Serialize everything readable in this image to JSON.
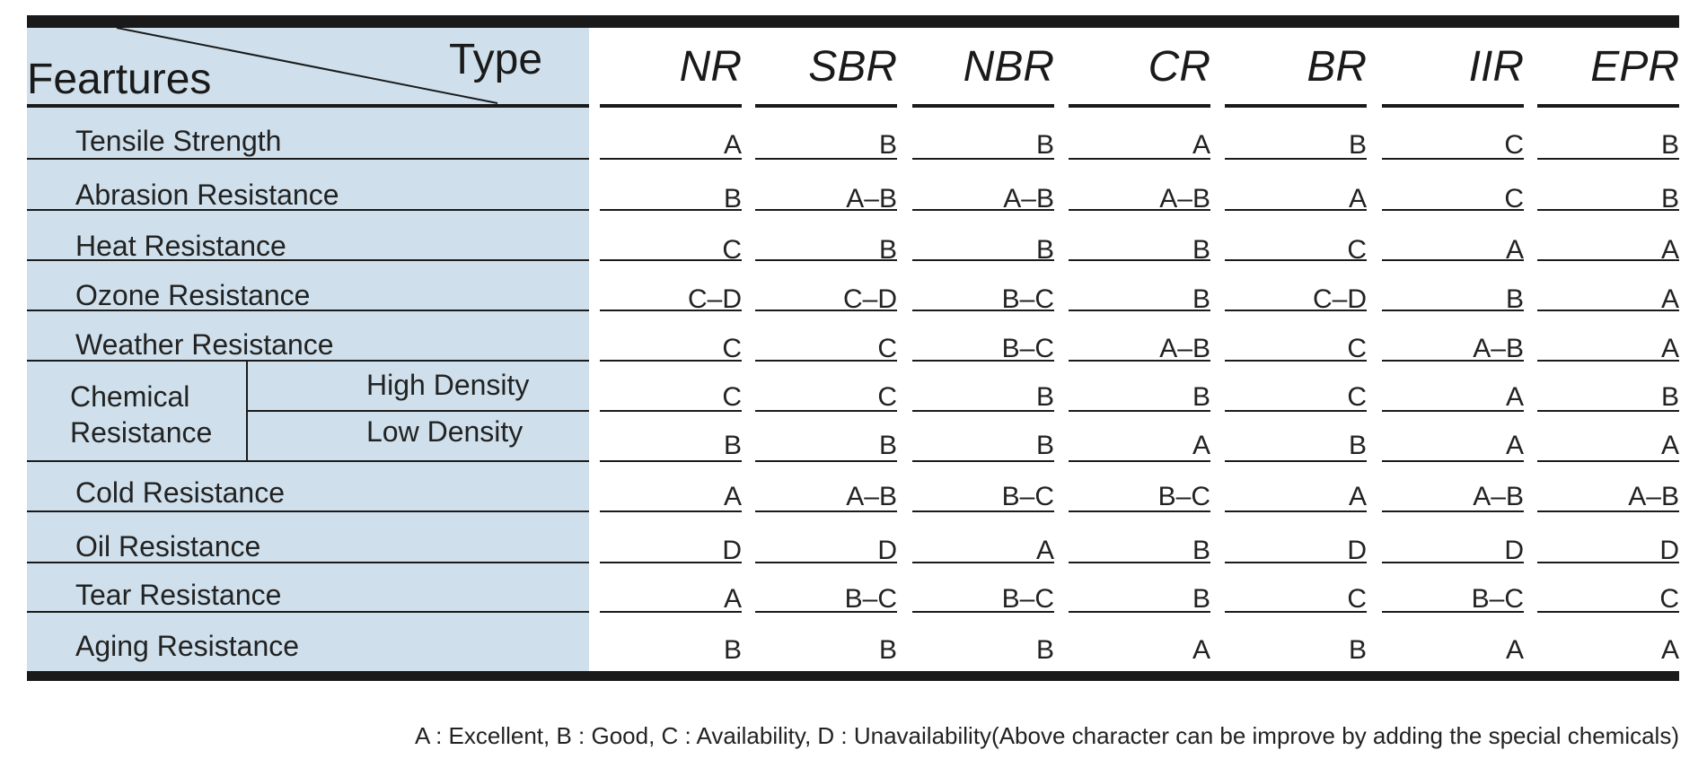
{
  "corner": {
    "type_label": "Type",
    "features_label": "Feartures"
  },
  "columns": [
    "NR",
    "SBR",
    "NBR",
    "CR",
    "BR",
    "IIR",
    "EPR"
  ],
  "chemical_group": {
    "label_line1": "Chemical",
    "label_line2": "Resistance"
  },
  "rows": [
    {
      "feature": "Tensile Strength",
      "values": [
        "A",
        "B",
        "B",
        "A",
        "B",
        "C",
        "B"
      ]
    },
    {
      "feature": "Abrasion Resistance",
      "values": [
        "B",
        "A–B",
        "A–B",
        "A–B",
        "A",
        "C",
        "B"
      ]
    },
    {
      "feature": "Heat Resistance",
      "values": [
        "C",
        "B",
        "B",
        "B",
        "C",
        "A",
        "A"
      ]
    },
    {
      "feature": "Ozone Resistance",
      "values": [
        "C–D",
        "C–D",
        "B–C",
        "B",
        "C–D",
        "B",
        "A"
      ]
    },
    {
      "feature": "Weather Resistance",
      "values": [
        "C",
        "C",
        "B–C",
        "A–B",
        "C",
        "A–B",
        "A"
      ]
    },
    {
      "feature": "High Density",
      "values": [
        "C",
        "C",
        "B",
        "B",
        "C",
        "A",
        "B"
      ]
    },
    {
      "feature": "Low Density",
      "values": [
        "B",
        "B",
        "B",
        "A",
        "B",
        "A",
        "A"
      ]
    },
    {
      "feature": "Cold Resistance",
      "values": [
        "A",
        "A–B",
        "B–C",
        "B–C",
        "A",
        "A–B",
        "A–B"
      ]
    },
    {
      "feature": "Oil Resistance",
      "values": [
        "D",
        "D",
        "A",
        "B",
        "D",
        "D",
        "D"
      ]
    },
    {
      "feature": "Tear Resistance",
      "values": [
        "A",
        "B–C",
        "B–C",
        "B",
        "C",
        "B–C",
        "C"
      ]
    },
    {
      "feature": "Aging Resistance",
      "values": [
        "B",
        "B",
        "B",
        "A",
        "B",
        "A",
        "A"
      ]
    }
  ],
  "legend": "A : Excellent, B : Good, C : Availability, D : Unavailability(Above character can be improve by adding the special chemicals)"
}
